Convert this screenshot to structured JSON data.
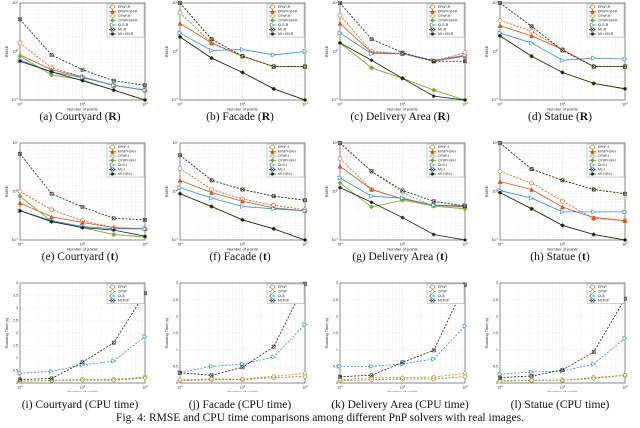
{
  "figure_caption": "Fig. 4: RMSE and CPU time comparisons among different PnP solvers with real images.",
  "series_colors": {
    "EPnP": "#D95319",
    "CPnP": "#77AC30",
    "DLS": "#2E8BD6",
    "ML": "#1a1a1a"
  },
  "chart_data": [
    {
      "type": "line",
      "title": {
        "prefix": "(a) Courtyard (",
        "bold": "R",
        "suffix": ")"
      },
      "xlabel": "Number of points",
      "ylabel": "RMSE",
      "xscale": "log",
      "yscale": "log",
      "xlim": [
        10,
        1000
      ],
      "ylim": [
        0.1,
        10
      ],
      "grid": true,
      "legend": "top-right",
      "x": [
        10,
        32,
        100,
        316,
        1000
      ],
      "series": [
        {
          "name": "EPnP-R",
          "values": [
            1.5,
            0.46,
            0.3,
            0.2,
            0.16
          ]
        },
        {
          "name": "EPnP+GN-R",
          "values": [
            0.85,
            0.42,
            0.3,
            0.2,
            0.16
          ]
        },
        {
          "name": "CPnP-R",
          "values": [
            0.8,
            0.33,
            0.26,
            0.16,
            0.1
          ]
        },
        {
          "name": "CPnP+GN-R",
          "values": [
            0.8,
            0.33,
            0.26,
            0.16,
            0.1
          ]
        },
        {
          "name": "DLS-R",
          "values": [
            0.66,
            0.38,
            0.29,
            0.2,
            0.16
          ]
        },
        {
          "name": "ML-R",
          "values": [
            4.6,
            0.85,
            0.42,
            0.25,
            0.2
          ]
        },
        {
          "name": "ML+GN-R",
          "values": [
            0.63,
            0.38,
            0.25,
            0.16,
            0.1
          ]
        }
      ]
    },
    {
      "type": "line",
      "title": {
        "prefix": "(b) Facade (",
        "bold": "R",
        "suffix": ")"
      },
      "xlabel": "Number of points",
      "ylabel": "RMSE",
      "xscale": "log",
      "yscale": "log",
      "xlim": [
        10,
        1000
      ],
      "ylim": [
        0.1,
        10
      ],
      "grid": true,
      "legend": "top-right",
      "x": [
        10,
        32,
        100,
        316,
        1000
      ],
      "series": [
        {
          "name": "EPnP-R",
          "values": [
            6.3,
            1.5,
            0.8,
            0.49,
            0.49
          ]
        },
        {
          "name": "EPnP+GN-R",
          "values": [
            3.8,
            1.5,
            0.8,
            0.49,
            0.49
          ]
        },
        {
          "name": "CPnP-R",
          "values": [
            10,
            1.8,
            0.8,
            0.49,
            0.49
          ]
        },
        {
          "name": "CPnP+GN-R",
          "values": [
            2.0,
            0.73,
            0.37,
            0.17,
            0.1
          ]
        },
        {
          "name": "DLS-R",
          "values": [
            2.4,
            1.05,
            1.1,
            0.85,
            1.0
          ]
        },
        {
          "name": "ML-R",
          "values": [
            10,
            1.8,
            0.8,
            0.49,
            0.49
          ]
        },
        {
          "name": "ML+GN-R",
          "values": [
            2.0,
            0.73,
            0.37,
            0.17,
            0.1
          ]
        }
      ]
    },
    {
      "type": "line",
      "title": {
        "prefix": "(c) Delivery Area (",
        "bold": "R",
        "suffix": ")"
      },
      "xlabel": "Number of points",
      "ylabel": "RMSE",
      "xscale": "log",
      "yscale": "log",
      "xlim": [
        10,
        1000
      ],
      "ylim": [
        0.1,
        10
      ],
      "grid": true,
      "legend": "top-right",
      "x": [
        10,
        32,
        100,
        316,
        1000
      ],
      "series": [
        {
          "name": "EPnP-R",
          "values": [
            5.6,
            1.0,
            0.9,
            0.63,
            0.95
          ]
        },
        {
          "name": "EPnP+GN-R",
          "values": [
            3.8,
            0.95,
            0.9,
            0.63,
            0.8
          ]
        },
        {
          "name": "CPnP-R",
          "values": [
            1.5,
            0.46,
            0.28,
            0.16,
            0.1
          ]
        },
        {
          "name": "CPnP+GN-R",
          "values": [
            1.5,
            0.46,
            0.28,
            0.16,
            0.1
          ]
        },
        {
          "name": "DLS-R",
          "values": [
            2.4,
            0.9,
            0.9,
            0.66,
            0.83
          ]
        },
        {
          "name": "ML-R",
          "values": [
            10,
            1.8,
            0.95,
            0.63,
            0.63
          ]
        },
        {
          "name": "ML+GN-R",
          "values": [
            1.5,
            0.66,
            0.28,
            0.12,
            0.1
          ]
        }
      ]
    },
    {
      "type": "line",
      "title": {
        "prefix": "(d) Statue (",
        "bold": "R",
        "suffix": ")"
      },
      "xlabel": "Number of points",
      "ylabel": "RMSE",
      "xscale": "log",
      "yscale": "log",
      "xlim": [
        10,
        1000
      ],
      "ylim": [
        0.1,
        10
      ],
      "grid": true,
      "legend": "top-right",
      "x": [
        10,
        32,
        100,
        316,
        1000
      ],
      "series": [
        {
          "name": "EPnP-R",
          "values": [
            4.4,
            2.6,
            1.1,
            0.49,
            0.49
          ]
        },
        {
          "name": "EPnP+GN-R",
          "values": [
            3.4,
            2.1,
            1.1,
            0.49,
            0.49
          ]
        },
        {
          "name": "CPnP-R",
          "values": [
            10,
            3.3,
            1.05,
            0.49,
            0.49
          ]
        },
        {
          "name": "CPnP+GN-R",
          "values": [
            2.1,
            0.8,
            0.37,
            0.22,
            0.17
          ]
        },
        {
          "name": "DLS-R",
          "values": [
            2.4,
            1.5,
            0.66,
            0.73,
            0.7
          ]
        },
        {
          "name": "ML-R",
          "values": [
            10,
            3.3,
            1.05,
            0.49,
            0.49
          ]
        },
        {
          "name": "ML+GN-R",
          "values": [
            2.1,
            0.8,
            0.37,
            0.22,
            0.17
          ]
        }
      ]
    },
    {
      "type": "line",
      "title": {
        "prefix": "(e) Courtyard (",
        "bold": "t",
        "suffix": ")"
      },
      "xlabel": "Number of points",
      "ylabel": "RMSE",
      "xscale": "log",
      "yscale": "log",
      "xlim": [
        10,
        1000
      ],
      "ylim": [
        0.1,
        10
      ],
      "grid": true,
      "legend": "top-right",
      "x": [
        10,
        32,
        100,
        316,
        1000
      ],
      "series": [
        {
          "name": "EPnP-t",
          "values": [
            1.0,
            0.42,
            0.25,
            0.18,
            0.17
          ]
        },
        {
          "name": "EPnP+GN-t",
          "values": [
            0.58,
            0.3,
            0.23,
            0.18,
            0.17
          ]
        },
        {
          "name": "CPnP-t",
          "values": [
            0.8,
            0.24,
            0.18,
            0.13,
            0.115
          ]
        },
        {
          "name": "CPnP+GN-t",
          "values": [
            0.8,
            0.24,
            0.18,
            0.13,
            0.115
          ]
        },
        {
          "name": "DLS-t",
          "values": [
            0.4,
            0.25,
            0.19,
            0.17,
            0.17
          ]
        },
        {
          "name": "ML-t",
          "values": [
            6,
            0.9,
            0.48,
            0.28,
            0.26
          ]
        },
        {
          "name": "ML+GN-t",
          "values": [
            0.4,
            0.24,
            0.18,
            0.16,
            0.12
          ]
        }
      ]
    },
    {
      "type": "line",
      "title": {
        "prefix": "(f) Facade (",
        "bold": "t",
        "suffix": ")"
      },
      "xlabel": "Number of points",
      "ylabel": "RMSE",
      "xscale": "log",
      "yscale": "log",
      "xlim": [
        10,
        1000
      ],
      "ylim": [
        0.1,
        10
      ],
      "grid": true,
      "legend": "top-right",
      "x": [
        10,
        32,
        100,
        316,
        1000
      ],
      "series": [
        {
          "name": "EPnP-t",
          "values": [
            3,
            1.1,
            0.7,
            0.52,
            0.42
          ]
        },
        {
          "name": "EPnP+GN-t",
          "values": [
            1.7,
            0.95,
            0.63,
            0.46,
            0.4
          ]
        },
        {
          "name": "CPnP-t",
          "values": [
            5.6,
            1.7,
            1.1,
            0.8,
            0.66
          ]
        },
        {
          "name": "CPnP+GN-t",
          "values": [
            0.9,
            0.49,
            0.26,
            0.17,
            0.1
          ]
        },
        {
          "name": "DLS-t",
          "values": [
            1.2,
            0.73,
            0.49,
            0.44,
            0.4
          ]
        },
        {
          "name": "ML-t",
          "values": [
            5.6,
            1.7,
            1.1,
            0.8,
            0.66
          ]
        },
        {
          "name": "ML+GN-t",
          "values": [
            0.9,
            0.49,
            0.26,
            0.17,
            0.1
          ]
        }
      ]
    },
    {
      "type": "line",
      "title": {
        "prefix": "(g) Delivery Area (",
        "bold": "t",
        "suffix": ")"
      },
      "xlabel": "Number of points",
      "ylabel": "RMSE",
      "xscale": "log",
      "yscale": "log",
      "xlim": [
        10,
        1000
      ],
      "ylim": [
        0.1,
        10
      ],
      "grid": true,
      "legend": "top-right",
      "x": [
        10,
        32,
        100,
        316,
        1000
      ],
      "series": [
        {
          "name": "EPnP-t",
          "values": [
            4.8,
            1.1,
            0.7,
            0.52,
            0.49
          ]
        },
        {
          "name": "EPnP+GN-t",
          "values": [
            3.3,
            1.1,
            0.7,
            0.52,
            0.48
          ]
        },
        {
          "name": "CPnP-t",
          "values": [
            10,
            2.6,
            0.95,
            0.5,
            0.44
          ]
        },
        {
          "name": "CPnP+GN-t",
          "values": [
            1.5,
            0.48,
            0.66,
            0.5,
            0.44
          ]
        },
        {
          "name": "DLS-t",
          "values": [
            1.9,
            0.8,
            0.73,
            0.52,
            0.52
          ]
        },
        {
          "name": "ML-t",
          "values": [
            10,
            2.6,
            1.05,
            0.63,
            0.5
          ]
        },
        {
          "name": "ML+GN-t",
          "values": [
            1.2,
            0.6,
            0.29,
            0.13,
            0.1
          ]
        }
      ]
    },
    {
      "type": "line",
      "title": {
        "prefix": "(h) Statue (",
        "bold": "t",
        "suffix": ")"
      },
      "xlabel": "Number of points",
      "ylabel": "RMSE",
      "xscale": "log",
      "yscale": "log",
      "xlim": [
        10,
        1000
      ],
      "ylim": [
        0.1,
        10
      ],
      "grid": true,
      "legend": "top-right",
      "x": [
        10,
        32,
        100,
        316,
        1000
      ],
      "series": [
        {
          "name": "EPnP-t",
          "values": [
            2.6,
            1.5,
            0.63,
            0.28,
            0.25
          ]
        },
        {
          "name": "EPnP+GN-t",
          "values": [
            1.6,
            1.1,
            0.48,
            0.29,
            0.25
          ]
        },
        {
          "name": "CPnP-t",
          "values": [
            10,
            2.9,
            1.7,
            1.1,
            0.9
          ]
        },
        {
          "name": "CPnP+GN-t",
          "values": [
            0.95,
            0.44,
            0.2,
            0.13,
            0.1
          ]
        },
        {
          "name": "DLS-t",
          "values": [
            1.05,
            0.73,
            0.38,
            0.38,
            0.38
          ]
        },
        {
          "name": "ML-t",
          "values": [
            10,
            2.9,
            1.7,
            1.1,
            0.9
          ]
        },
        {
          "name": "ML+GN-t",
          "values": [
            0.95,
            0.44,
            0.2,
            0.13,
            0.1
          ]
        }
      ]
    },
    {
      "type": "line",
      "title": {
        "prefix": "(i) Courtyard (CPU time)",
        "bold": "",
        "suffix": ""
      },
      "xlabel": "Number of points",
      "ylabel": "Running Time (s)",
      "xscale": "log",
      "yscale": "linear",
      "xlim": [
        10,
        1000
      ],
      "ylim": [
        0,
        4
      ],
      "ystep": 0.5,
      "grid": true,
      "legend": "top-right",
      "x": [
        10,
        32,
        100,
        316,
        1000
      ],
      "series": [
        {
          "name": "EPnP",
          "values": [
            0.07,
            0.1,
            0.14,
            0.14,
            0.23
          ]
        },
        {
          "name": "CPnP",
          "values": [
            0.07,
            0.1,
            0.11,
            0.11,
            0.2
          ]
        },
        {
          "name": "DLS",
          "values": [
            0.39,
            0.47,
            0.72,
            0.88,
            1.86
          ]
        },
        {
          "name": "MLPnP",
          "values": [
            0.14,
            0.18,
            0.83,
            1.61,
            3.59
          ]
        }
      ]
    },
    {
      "type": "line",
      "title": {
        "prefix": "(j) Facade (CPU time)",
        "bold": "",
        "suffix": ""
      },
      "xlabel": "Number of points",
      "ylabel": "Running Time (s)",
      "xscale": "log",
      "yscale": "linear",
      "xlim": [
        10,
        1000
      ],
      "ylim": [
        0,
        3
      ],
      "ystep": 0.5,
      "grid": true,
      "legend": "top-right",
      "x": [
        10,
        32,
        100,
        316,
        1000
      ],
      "series": [
        {
          "name": "EPnP",
          "values": [
            0.07,
            0.1,
            0.1,
            0.16,
            0.2
          ]
        },
        {
          "name": "CPnP",
          "values": [
            0.1,
            0.12,
            0.12,
            0.2,
            0.29
          ]
        },
        {
          "name": "DLS",
          "values": [
            0.31,
            0.5,
            0.57,
            0.78,
            1.76
          ]
        },
        {
          "name": "MLPnP",
          "values": [
            0.31,
            0.23,
            0.47,
            1.09,
            2.98
          ]
        }
      ]
    },
    {
      "type": "line",
      "title": {
        "prefix": "(k) Delivery Area (CPU time)",
        "bold": "",
        "suffix": ""
      },
      "xlabel": "Number of points",
      "ylabel": "Running Time (s)",
      "xscale": "log",
      "yscale": "linear",
      "xlim": [
        10,
        1000
      ],
      "ylim": [
        0,
        3
      ],
      "ystep": 0.5,
      "grid": true,
      "legend": "top-right",
      "x": [
        10,
        32,
        100,
        316,
        1000
      ],
      "series": [
        {
          "name": "EPnP",
          "values": [
            0.07,
            0.1,
            0.12,
            0.12,
            0.19
          ]
        },
        {
          "name": "CPnP",
          "values": [
            0.1,
            0.16,
            0.16,
            0.18,
            0.29
          ]
        },
        {
          "name": "DLS",
          "values": [
            0.5,
            0.5,
            0.57,
            0.72,
            1.71
          ]
        },
        {
          "name": "MLPnP",
          "values": [
            0.19,
            0.23,
            0.62,
            0.98,
            2.95
          ]
        }
      ]
    },
    {
      "type": "line",
      "title": {
        "prefix": "(l) Statue (CPU time)",
        "bold": "",
        "suffix": ""
      },
      "xlabel": "Number of points",
      "ylabel": "Running Time (s)",
      "xscale": "log",
      "yscale": "linear",
      "xlim": [
        10,
        1000
      ],
      "ylim": [
        0,
        3
      ],
      "ystep": 0.5,
      "grid": true,
      "legend": "top-right",
      "x": [
        10,
        32,
        100,
        316,
        1000
      ],
      "series": [
        {
          "name": "EPnP",
          "values": [
            0.07,
            0.08,
            0.08,
            0.16,
            0.23
          ]
        },
        {
          "name": "CPnP",
          "values": [
            0.05,
            0.08,
            0.08,
            0.13,
            0.23
          ]
        },
        {
          "name": "DLS",
          "values": [
            0.26,
            0.33,
            0.36,
            0.57,
            1.34
          ]
        },
        {
          "name": "MLPnP",
          "values": [
            0.16,
            0.21,
            0.39,
            0.93,
            2.53
          ]
        }
      ]
    }
  ]
}
